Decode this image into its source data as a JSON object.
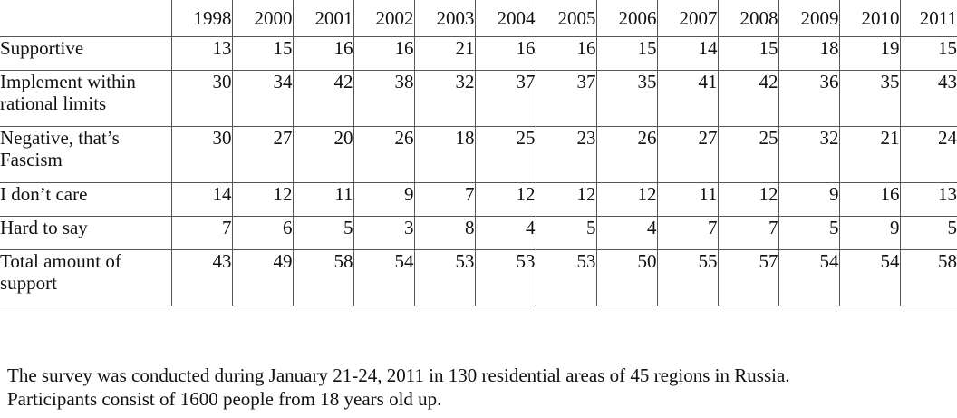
{
  "chart_data": {
    "type": "table",
    "columns": [
      "1998",
      "2000",
      "2001",
      "2002",
      "2003",
      "2004",
      "2005",
      "2006",
      "2007",
      "2008",
      "2009",
      "2010",
      "2011"
    ],
    "rows": [
      {
        "label": "Supportive",
        "values": [
          13,
          15,
          16,
          16,
          21,
          16,
          16,
          15,
          14,
          15,
          18,
          19,
          15
        ]
      },
      {
        "label": "Implement within rational limits",
        "values": [
          30,
          34,
          42,
          38,
          32,
          37,
          37,
          35,
          41,
          42,
          36,
          35,
          43
        ]
      },
      {
        "label": "Negative, that’s Fascism",
        "values": [
          30,
          27,
          20,
          26,
          18,
          25,
          23,
          26,
          27,
          25,
          32,
          21,
          24
        ]
      },
      {
        "label": "I don’t care",
        "values": [
          14,
          12,
          11,
          9,
          7,
          12,
          12,
          12,
          11,
          12,
          9,
          16,
          13
        ]
      },
      {
        "label": "Hard to say",
        "values": [
          7,
          6,
          5,
          3,
          8,
          4,
          5,
          4,
          7,
          7,
          5,
          9,
          5
        ]
      },
      {
        "label": "Total amount of support",
        "values": [
          43,
          49,
          58,
          54,
          53,
          53,
          53,
          50,
          55,
          57,
          54,
          54,
          58
        ]
      }
    ]
  },
  "note": {
    "line1": "The survey was conducted during January 21-24, 2011 in 130 residential areas of 45 regions in Russia.",
    "line2": "Participants consist of 1600 people from 18 years old up."
  }
}
